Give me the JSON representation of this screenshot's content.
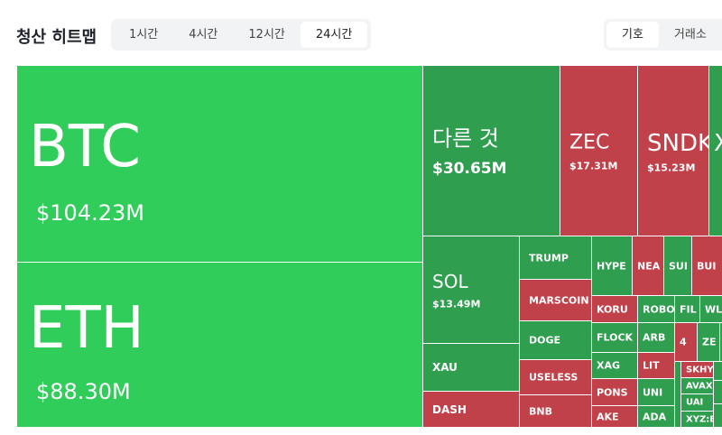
{
  "header": {
    "title": "청산 히트맵",
    "time_tabs": [
      {
        "label": "1시간",
        "active": false
      },
      {
        "label": "4시간",
        "active": false
      },
      {
        "label": "12시간",
        "active": false
      },
      {
        "label": "24시간",
        "active": true
      }
    ],
    "view_tabs": [
      {
        "label": "기호",
        "active": true
      },
      {
        "label": "거래소",
        "active": false
      }
    ]
  },
  "heatmap": {
    "cells": [
      {
        "label": "BTC",
        "value": "$104.23M",
        "color": "#31cd5a"
      },
      {
        "label": "ETH",
        "value": "$88.30M",
        "color": "#31cd5a"
      },
      {
        "label": "다른 것",
        "value": "$30.65M",
        "color": "#2f9e4f"
      },
      {
        "label": "ZEC",
        "value": "$17.31M",
        "color": "#c0414a"
      },
      {
        "label": "SNDK",
        "value": "$15.23M",
        "color": "#c0414a"
      },
      {
        "label": "X",
        "color": "#2f9e4f"
      },
      {
        "label": "SOL",
        "value": "$13.49M",
        "color": "#2f9e4f"
      },
      {
        "label": "XAU",
        "color": "#2f9e4f"
      },
      {
        "label": "DASH",
        "color": "#c0414a"
      },
      {
        "label": "TRUMP",
        "color": "#2f9e4f"
      },
      {
        "label": "MARSCOIN",
        "color": "#c0414a"
      },
      {
        "label": "DOGE",
        "color": "#2f9e4f"
      },
      {
        "label": "USELESS",
        "color": "#c0414a"
      },
      {
        "label": "BNB",
        "color": "#c0414a"
      },
      {
        "label": "HYPE",
        "color": "#2f9e4f"
      },
      {
        "label": "NEA",
        "color": "#c0414a"
      },
      {
        "label": "SUI",
        "color": "#2f9e4f"
      },
      {
        "label": "BUI",
        "color": "#c0414a"
      },
      {
        "label": "KORU",
        "color": "#c0414a"
      },
      {
        "label": "ROBO",
        "color": "#2f9e4f"
      },
      {
        "label": "FIL",
        "color": "#2f9e4f"
      },
      {
        "label": "WL",
        "color": "#2f9e4f"
      },
      {
        "label": "FLOCK",
        "color": "#2f9e4f"
      },
      {
        "label": "ARB",
        "color": "#2f9e4f"
      },
      {
        "label": "4",
        "color": "#c0414a"
      },
      {
        "label": "ZE",
        "color": "#2f9e4f"
      },
      {
        "label": "XAG",
        "color": "#2f9e4f"
      },
      {
        "label": "LIT",
        "color": "#c0414a"
      },
      {
        "label": "PONS",
        "color": "#c0414a"
      },
      {
        "label": "UNI",
        "color": "#2f9e4f"
      },
      {
        "label": "AKE",
        "color": "#c0414a"
      },
      {
        "label": "ADA",
        "color": "#2f9e4f"
      },
      {
        "label": "SKHY",
        "color": "#c0414a"
      },
      {
        "label": "AVAX",
        "color": "#2f9e4f"
      },
      {
        "label": "UAI",
        "color": "#2f9e4f"
      },
      {
        "label": "XYZ:B",
        "color": "#2f9e4f"
      }
    ]
  }
}
